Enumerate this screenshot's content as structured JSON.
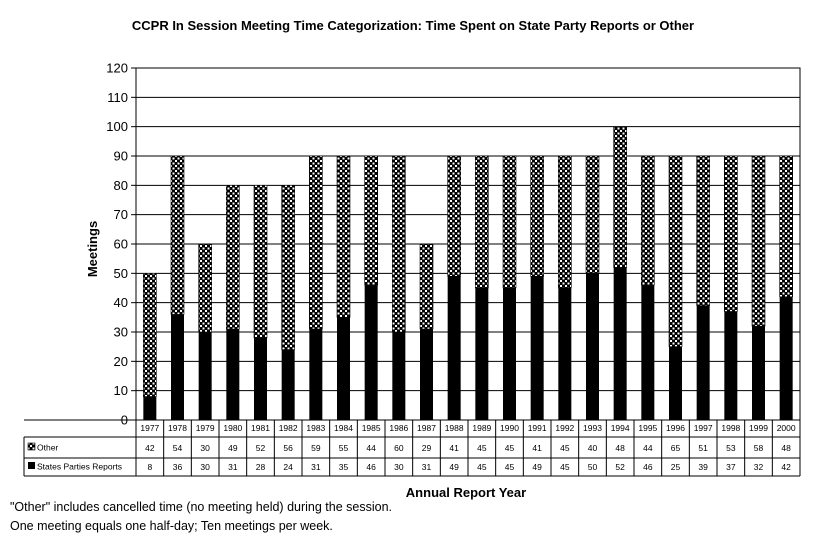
{
  "chart_data": {
    "type": "bar",
    "stacked": true,
    "title": "CCPR In Session Meeting Time Categorization: Time Spent on State Party Reports or Other",
    "xlabel": "Annual Report Year",
    "ylabel": "Meetings",
    "ylim": [
      0,
      120
    ],
    "yticks": [
      0,
      10,
      20,
      30,
      40,
      50,
      60,
      70,
      80,
      90,
      100,
      110,
      120
    ],
    "grid": true,
    "legend": "data-table-left",
    "categories": [
      "1977",
      "1978",
      "1979",
      "1980",
      "1981",
      "1982",
      "1983",
      "1984",
      "1985",
      "1986",
      "1987",
      "1988",
      "1989",
      "1990",
      "1991",
      "1992",
      "1993",
      "1994",
      "1995",
      "1996",
      "1997",
      "1998",
      "1999",
      "2000"
    ],
    "series": [
      {
        "name": "States Parties Reports",
        "color": "#000000",
        "values": [
          8,
          36,
          30,
          31,
          28,
          24,
          31,
          35,
          46,
          30,
          31,
          49,
          45,
          45,
          49,
          45,
          50,
          52,
          46,
          25,
          39,
          37,
          32,
          42
        ]
      },
      {
        "name": "Other",
        "color": "#ffffff",
        "pattern": "checkered",
        "values": [
          42,
          54,
          30,
          49,
          52,
          56,
          59,
          55,
          44,
          60,
          29,
          41,
          45,
          45,
          41,
          45,
          40,
          48,
          44,
          65,
          51,
          53,
          58,
          48
        ]
      }
    ]
  },
  "notes": [
    "\"Other\" includes cancelled time (no meeting held) during the session.",
    " One meeting equals one half-day; Ten meetings per week."
  ]
}
